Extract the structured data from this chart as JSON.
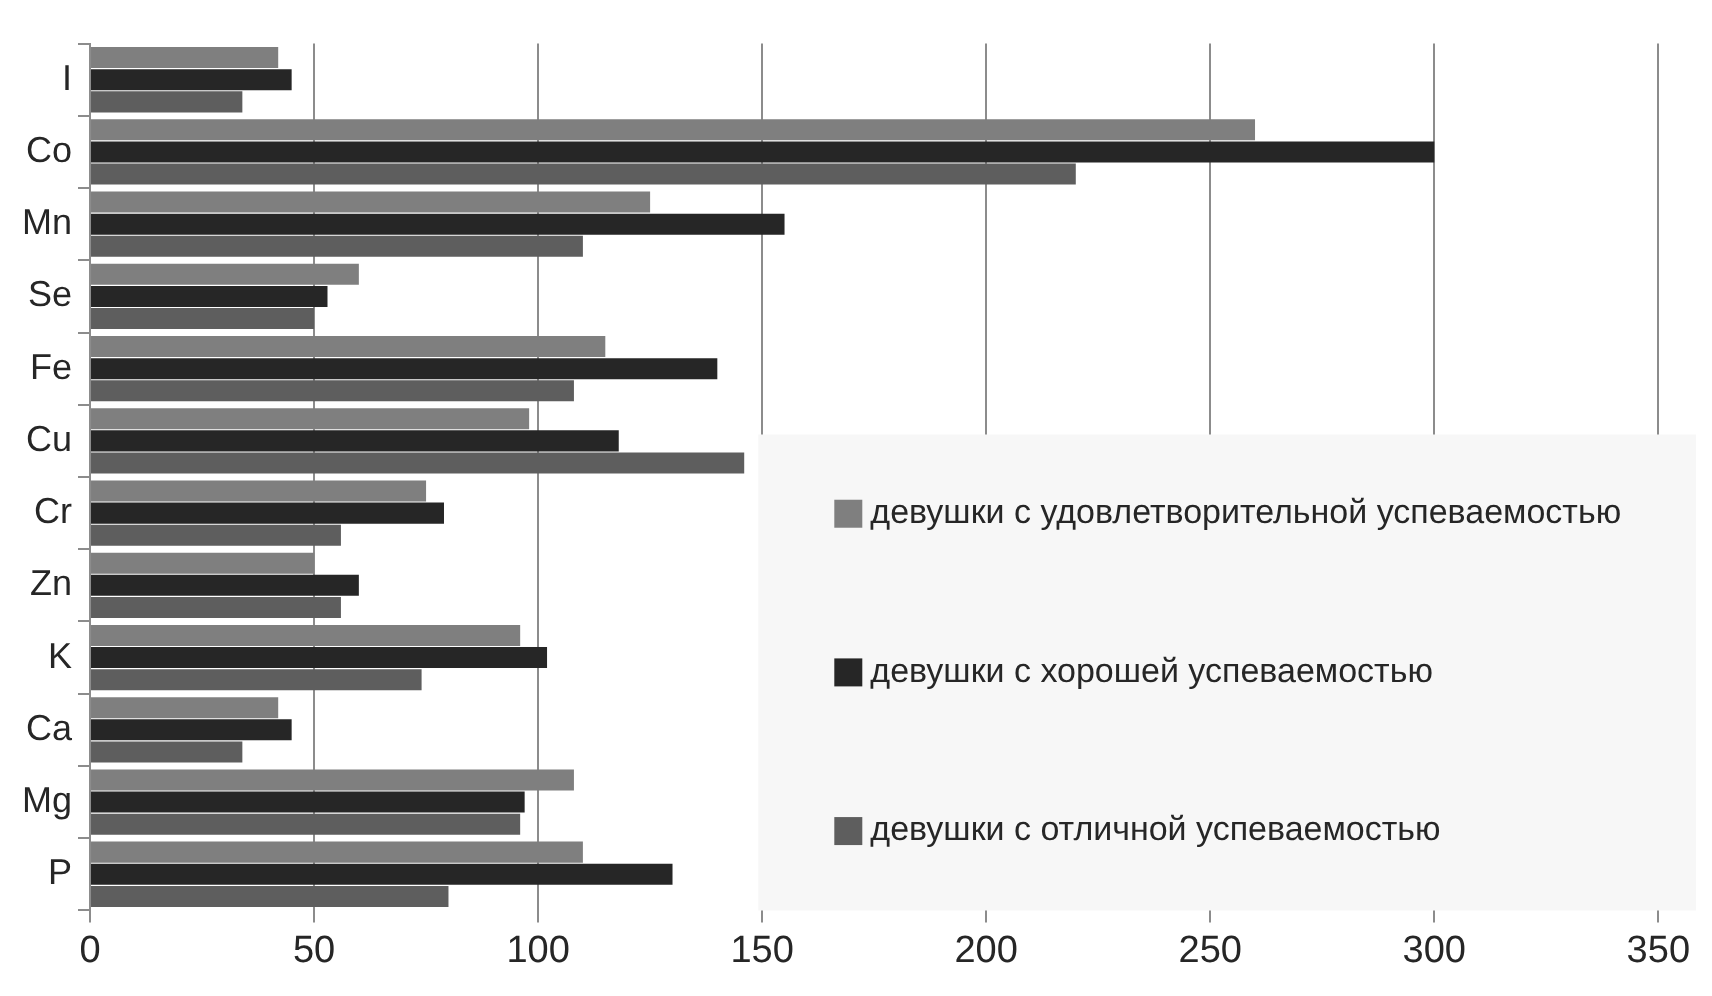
{
  "chart_data": {
    "type": "bar",
    "orientation": "horizontal",
    "categories": [
      "I",
      "Co",
      "Mn",
      "Se",
      "Fe",
      "Cu",
      "Cr",
      "Zn",
      "K",
      "Ca",
      "Mg",
      "P"
    ],
    "series": [
      {
        "name": "девушки с удовлетворительной успеваемостью",
        "color": "#7f7f7f",
        "values": [
          42,
          260,
          125,
          60,
          115,
          98,
          75,
          50,
          96,
          42,
          108,
          110
        ]
      },
      {
        "name": "девушки с хорошей успеваемостью",
        "color": "#262626",
        "values": [
          45,
          300,
          155,
          53,
          140,
          118,
          79,
          60,
          102,
          45,
          97,
          130
        ]
      },
      {
        "name": "девушки с отличной успеваемостью",
        "color": "#5e5e5e",
        "values": [
          34,
          220,
          110,
          50,
          108,
          146,
          56,
          56,
          74,
          34,
          96,
          80
        ]
      }
    ],
    "xlim": [
      0,
      350
    ],
    "xticks": [
      0,
      50,
      100,
      150,
      200,
      250,
      300,
      350
    ],
    "grid": "x",
    "legend": "bottom right"
  }
}
